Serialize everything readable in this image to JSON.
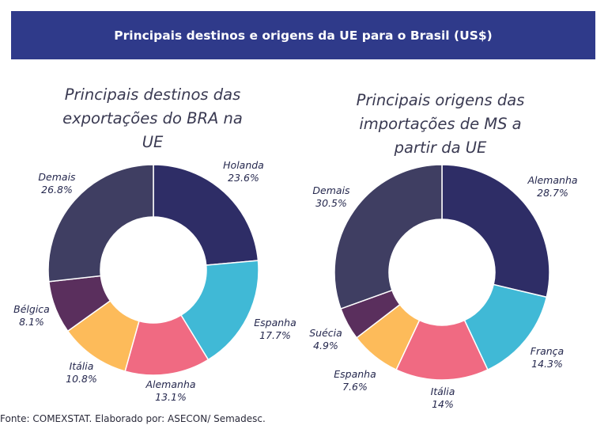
{
  "header": {
    "title": "Principais destinos e origens da UE para o Brasil (US$)"
  },
  "footer": {
    "source": "Fonte: COMEXSTAT. Elaborado por: ASECON/ Semadesc."
  },
  "colors": {
    "banner": "#2f3a8a"
  },
  "chart_data": [
    {
      "type": "pie",
      "donut": true,
      "title": "Principais destinos das exportações do BRA na UE",
      "title_lines": [
        "Principais destinos das",
        "exportações do BRA na",
        "UE"
      ],
      "slices": [
        {
          "name": "Holanda",
          "value": 23.6,
          "label": "23.6%",
          "color": "#2e2d66"
        },
        {
          "name": "Espanha",
          "value": 17.7,
          "label": "17.7%",
          "color": "#40b9d6"
        },
        {
          "name": "Alemanha",
          "value": 13.1,
          "label": "13.1%",
          "color": "#f06a82"
        },
        {
          "name": "Itália",
          "value": 10.8,
          "label": "10.8%",
          "color": "#fdbb5a"
        },
        {
          "name": "Bélgica",
          "value": 8.1,
          "label": "8.1%",
          "color": "#5a2f5d"
        },
        {
          "name": "Demais",
          "value": 26.8,
          "label": "26.8%",
          "color": "#3f3e62"
        }
      ]
    },
    {
      "type": "pie",
      "donut": true,
      "title": "Principais origens das importações de MS a partir da UE",
      "title_lines": [
        "Principais origens das",
        "importações de MS a",
        "partir da UE"
      ],
      "slices": [
        {
          "name": "Alemanha",
          "value": 28.7,
          "label": "28.7%",
          "color": "#2e2d66"
        },
        {
          "name": "França",
          "value": 14.3,
          "label": "14.3%",
          "color": "#40b9d6"
        },
        {
          "name": "Itália",
          "value": 14,
          "label": "14%",
          "color": "#f06a82"
        },
        {
          "name": "Espanha",
          "value": 7.6,
          "label": "7.6%",
          "color": "#fdbb5a"
        },
        {
          "name": "Suécia",
          "value": 4.9,
          "label": "4.9%",
          "color": "#5a2f5d"
        },
        {
          "name": "Demais",
          "value": 30.5,
          "label": "30.5%",
          "color": "#3f3e62"
        }
      ]
    }
  ]
}
